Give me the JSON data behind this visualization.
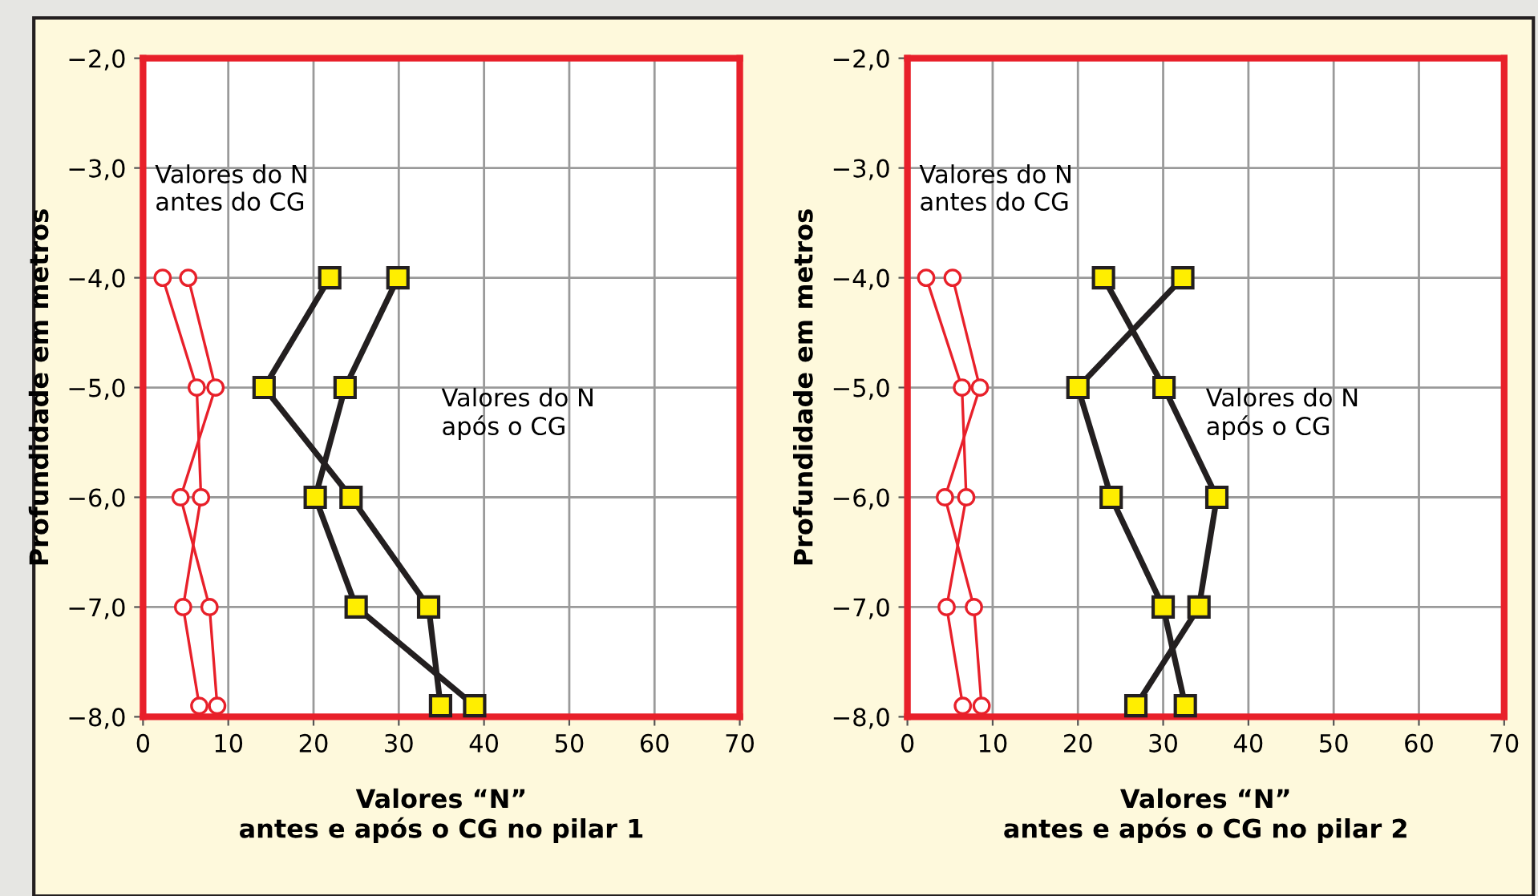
{
  "chart_data": [
    {
      "type": "line",
      "xlabel": "Valores “N”\nantes e após o CG no pilar 1",
      "ylabel": "Profundidade em metros",
      "xlim": [
        0,
        70
      ],
      "xticks": [
        0,
        10,
        20,
        30,
        40,
        50,
        60,
        70
      ],
      "ylim": [
        -8,
        -2
      ],
      "yticks": [
        {
          "value": -2,
          "label": "−2,0"
        },
        {
          "value": -3,
          "label": "−3,0"
        },
        {
          "value": -4,
          "label": "−4,0"
        },
        {
          "value": -5,
          "label": "−5,0"
        },
        {
          "value": -6,
          "label": "−6,0"
        },
        {
          "value": -7,
          "label": "−7,0"
        },
        {
          "value": -8,
          "label": "−8,0"
        }
      ],
      "grid": true,
      "annotations": [
        "Valores do N\nantes do CG",
        "Valores do N\napós o CG"
      ],
      "series": [
        {
          "color": "#e8202a",
          "marker": "circle",
          "x": [
            2.3,
            6.3,
            6.8,
            4.7,
            6.6
          ],
          "values": [
            -4,
            -5,
            -6,
            -7,
            -7.9
          ]
        },
        {
          "color": "#e8202a",
          "marker": "circle",
          "x": [
            5.3,
            8.5,
            4.4,
            7.8,
            8.7
          ],
          "values": [
            -4,
            -5,
            -6,
            -7,
            -7.9
          ]
        },
        {
          "color": "#231f20",
          "marker": "square",
          "x": [
            21.9,
            14.2,
            24.4,
            33.5,
            34.9
          ],
          "values": [
            -4,
            -5,
            -6,
            -7,
            -7.9
          ]
        },
        {
          "color": "#231f20",
          "marker": "square",
          "x": [
            29.9,
            23.7,
            20.2,
            25.0,
            38.9
          ],
          "values": [
            -4,
            -5,
            -6,
            -7,
            -7.9
          ]
        }
      ]
    },
    {
      "type": "line",
      "xlabel": "Valores “N”\nantes e após o CG no pilar 2",
      "ylabel": "Profundidade em metros",
      "xlim": [
        0,
        70
      ],
      "xticks": [
        0,
        10,
        20,
        30,
        40,
        50,
        60,
        70
      ],
      "ylim": [
        -8,
        -2
      ],
      "yticks": [
        {
          "value": -2,
          "label": "−2,0"
        },
        {
          "value": -3,
          "label": "−3,0"
        },
        {
          "value": -4,
          "label": "−4,0"
        },
        {
          "value": -5,
          "label": "−5,0"
        },
        {
          "value": -6,
          "label": "−6,0"
        },
        {
          "value": -7,
          "label": "−7,0"
        },
        {
          "value": -8,
          "label": "−8,0"
        }
      ],
      "grid": true,
      "annotations": [
        "Valores do N\nantes do CG",
        "Valores do N\napós o CG"
      ],
      "series": [
        {
          "color": "#e8202a",
          "marker": "circle",
          "x": [
            2.2,
            6.4,
            6.9,
            4.6,
            6.5
          ],
          "values": [
            -4,
            -5,
            -6,
            -7,
            -7.9
          ]
        },
        {
          "color": "#e8202a",
          "marker": "circle",
          "x": [
            5.3,
            8.5,
            4.4,
            7.8,
            8.7
          ],
          "values": [
            -4,
            -5,
            -6,
            -7,
            -7.9
          ]
        },
        {
          "color": "#231f20",
          "marker": "square",
          "x": [
            23.0,
            30.1,
            36.3,
            34.2,
            26.8
          ],
          "values": [
            -4,
            -5,
            -6,
            -7,
            -7.9
          ]
        },
        {
          "color": "#231f20",
          "marker": "square",
          "x": [
            32.3,
            20.0,
            23.9,
            30.0,
            32.6
          ],
          "values": [
            -4,
            -5,
            -6,
            -7,
            -7.9
          ]
        }
      ]
    }
  ]
}
